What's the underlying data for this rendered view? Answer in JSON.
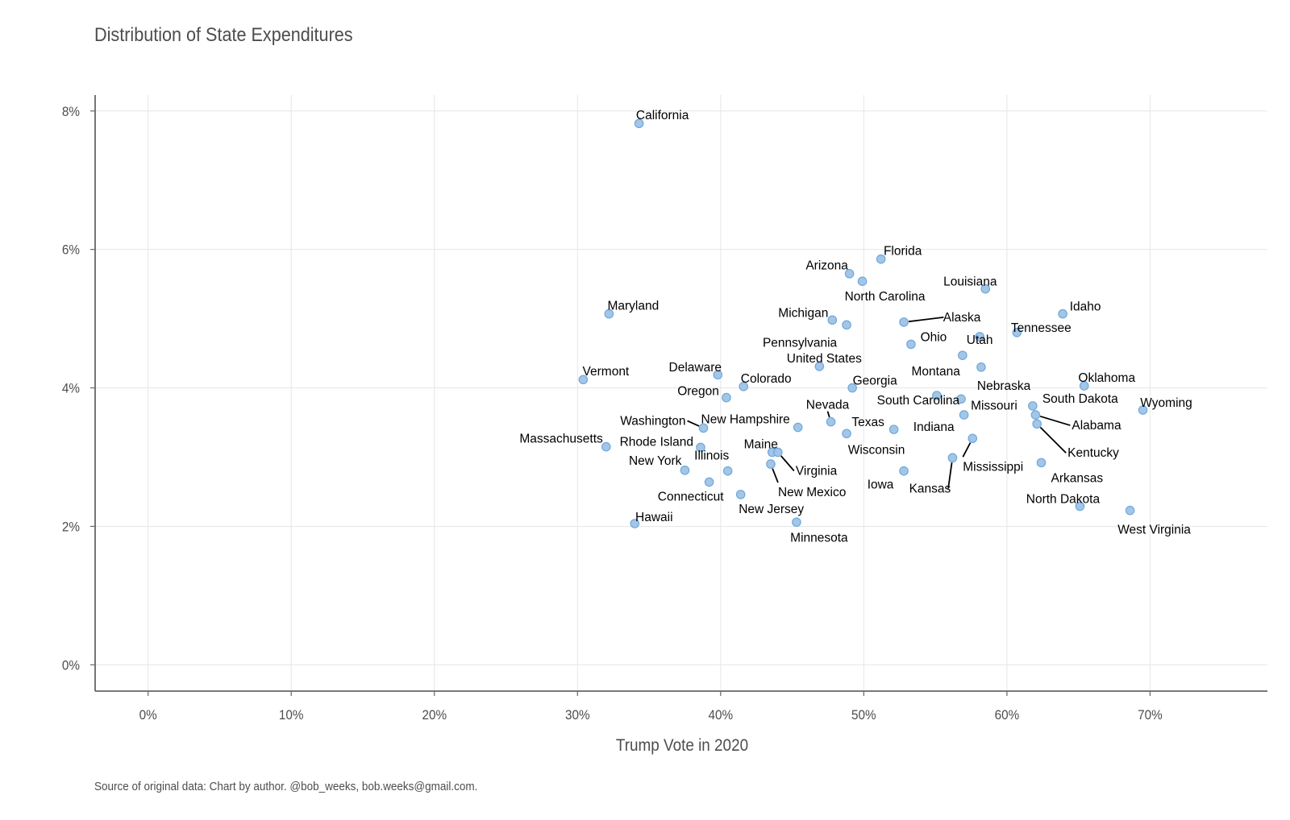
{
  "chart_data": {
    "type": "scatter",
    "title": "Distribution of State Expenditures",
    "xlabel": "Trump Vote in 2020",
    "ylabel": "",
    "caption": "Source of original data: Chart by author. @bob_weeks, bob.weeks@gmail.com.",
    "xlim": [
      -0.037,
      0.782
    ],
    "ylim": [
      -0.0038,
      0.0823
    ],
    "x_ticks": [
      0,
      0.1,
      0.2,
      0.3,
      0.4,
      0.5,
      0.6,
      0.7
    ],
    "x_tick_labels": [
      "0%",
      "10%",
      "20%",
      "30%",
      "40%",
      "50%",
      "60%",
      "70%"
    ],
    "y_ticks": [
      0,
      0.02,
      0.04,
      0.06,
      0.08
    ],
    "y_tick_labels": [
      "0%",
      "2%",
      "4%",
      "6%",
      "8%"
    ],
    "grid": true,
    "point_color": "#9ec3e6",
    "point_stroke": "#6fa8dc",
    "points": [
      {
        "label": "California",
        "x": 0.343,
        "y": 0.0782
      },
      {
        "label": "Florida",
        "x": 0.512,
        "y": 0.0586
      },
      {
        "label": "Arizona",
        "x": 0.49,
        "y": 0.0565
      },
      {
        "label": "North Carolina",
        "x": 0.499,
        "y": 0.0554
      },
      {
        "label": "Louisiana",
        "x": 0.585,
        "y": 0.0543
      },
      {
        "label": "Maryland",
        "x": 0.322,
        "y": 0.0507
      },
      {
        "label": "Idaho",
        "x": 0.639,
        "y": 0.0507
      },
      {
        "label": "Michigan",
        "x": 0.478,
        "y": 0.0498
      },
      {
        "label": "Alaska",
        "x": 0.528,
        "y": 0.0495
      },
      {
        "label": "Pennsylvania",
        "x": 0.488,
        "y": 0.0491
      },
      {
        "label": "Tennessee",
        "x": 0.607,
        "y": 0.048
      },
      {
        "label": "Utah",
        "x": 0.581,
        "y": 0.0474
      },
      {
        "label": "Ohio",
        "x": 0.533,
        "y": 0.0463
      },
      {
        "label": "Montana",
        "x": 0.569,
        "y": 0.0447
      },
      {
        "label": "United States",
        "x": 0.469,
        "y": 0.0431
      },
      {
        "label": "Nebraska",
        "x": 0.582,
        "y": 0.043
      },
      {
        "label": "Delaware",
        "x": 0.398,
        "y": 0.0419
      },
      {
        "label": "Vermont",
        "x": 0.304,
        "y": 0.0412
      },
      {
        "label": "Colorado",
        "x": 0.416,
        "y": 0.0402
      },
      {
        "label": "Oklahoma",
        "x": 0.654,
        "y": 0.0403
      },
      {
        "label": "Georgia",
        "x": 0.492,
        "y": 0.04
      },
      {
        "label": "South Carolina",
        "x": 0.551,
        "y": 0.0389
      },
      {
        "label": "Oregon",
        "x": 0.404,
        "y": 0.0386
      },
      {
        "label": "Missouri",
        "x": 0.568,
        "y": 0.0384
      },
      {
        "label": "South Dakota",
        "x": 0.618,
        "y": 0.0374
      },
      {
        "label": "Wyoming",
        "x": 0.695,
        "y": 0.0368
      },
      {
        "label": "Alabama",
        "x": 0.62,
        "y": 0.0361
      },
      {
        "label": "Indiana",
        "x": 0.57,
        "y": 0.0361
      },
      {
        "label": "Nevada",
        "x": 0.477,
        "y": 0.0351
      },
      {
        "label": "Kentucky",
        "x": 0.621,
        "y": 0.0348
      },
      {
        "label": "New Hampshire",
        "x": 0.454,
        "y": 0.0343
      },
      {
        "label": "Washington",
        "x": 0.388,
        "y": 0.0342
      },
      {
        "label": "Texas",
        "x": 0.521,
        "y": 0.034
      },
      {
        "label": "Wisconsin",
        "x": 0.488,
        "y": 0.0334
      },
      {
        "label": "Rhode Island",
        "x": 0.386,
        "y": 0.0314
      },
      {
        "label": "Massachusetts",
        "x": 0.32,
        "y": 0.0315
      },
      {
        "label": "Mississippi",
        "x": 0.576,
        "y": 0.0327
      },
      {
        "label": "Maine",
        "x": 0.436,
        "y": 0.0307
      },
      {
        "label": "Virginia",
        "x": 0.44,
        "y": 0.0307
      },
      {
        "label": "Kansas",
        "x": 0.562,
        "y": 0.0299
      },
      {
        "label": "Arkansas",
        "x": 0.624,
        "y": 0.0292
      },
      {
        "label": "New Mexico",
        "x": 0.435,
        "y": 0.029
      },
      {
        "label": "New York",
        "x": 0.375,
        "y": 0.0281
      },
      {
        "label": "Illinois",
        "x": 0.405,
        "y": 0.028
      },
      {
        "label": "Iowa",
        "x": 0.528,
        "y": 0.028
      },
      {
        "label": "Connecticut",
        "x": 0.392,
        "y": 0.0264
      },
      {
        "label": "New Jersey",
        "x": 0.414,
        "y": 0.0246
      },
      {
        "label": "North Dakota",
        "x": 0.651,
        "y": 0.0229
      },
      {
        "label": "West Virginia",
        "x": 0.686,
        "y": 0.0223
      },
      {
        "label": "Minnesota",
        "x": 0.453,
        "y": 0.0206
      },
      {
        "label": "Hawaii",
        "x": 0.34,
        "y": 0.0204
      }
    ]
  }
}
